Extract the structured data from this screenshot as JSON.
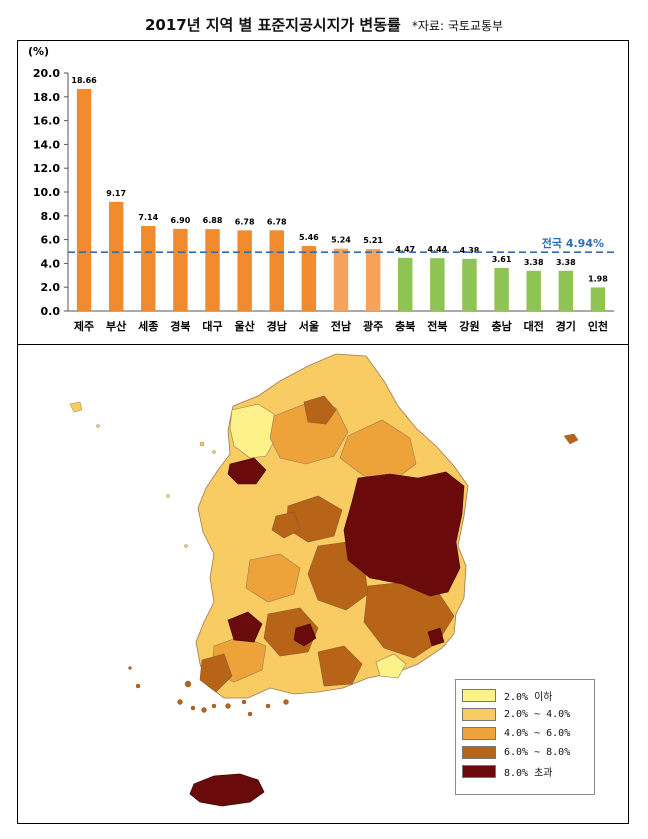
{
  "title": "2017년 지역 별 표준지공시지가 변동률",
  "source": "*자료: 국토교통부",
  "chart_data": {
    "type": "bar",
    "ylabel": "(%)",
    "ylim": [
      0,
      20
    ],
    "yticks": [
      "0.0",
      "2.0",
      "4.0",
      "6.0",
      "8.0",
      "10.0",
      "12.0",
      "14.0",
      "16.0",
      "18.0",
      "20.0"
    ],
    "categories": [
      "제주",
      "부산",
      "세종",
      "경북",
      "대구",
      "울산",
      "경남",
      "서울",
      "전남",
      "광주",
      "충북",
      "전북",
      "강원",
      "충남",
      "대전",
      "경기",
      "인천"
    ],
    "values": [
      18.66,
      9.17,
      7.14,
      6.9,
      6.88,
      6.78,
      6.78,
      5.46,
      5.24,
      5.21,
      4.47,
      4.44,
      4.38,
      3.61,
      3.38,
      3.38,
      1.98
    ],
    "labels": [
      "18.66",
      "9.17",
      "7.14",
      "6.90",
      "6.88",
      "6.78",
      "6.78",
      "5.46",
      "5.24",
      "5.21",
      "4.47",
      "4.44",
      "4.38",
      "3.61",
      "3.38",
      "3.38",
      "1.98"
    ],
    "bar_colors": [
      "#f28a2e",
      "#f28a2e",
      "#f28a2e",
      "#f28a2e",
      "#f28a2e",
      "#f28a2e",
      "#f28a2e",
      "#f28a2e",
      "#f6a25a",
      "#f6a25a",
      "#8dc454",
      "#8dc454",
      "#8dc454",
      "#8dc454",
      "#8dc454",
      "#8dc454",
      "#8dc454"
    ],
    "reference_line": {
      "label": "전국 4.94%",
      "value": 4.94,
      "color": "#2e6db4"
    },
    "grid": false
  },
  "map": {
    "legend": [
      {
        "label": "2.0% 이하",
        "color": "#fdf28a"
      },
      {
        "label": "2.0% ~ 4.0%",
        "color": "#f8cc63"
      },
      {
        "label": "4.0% ~ 6.0%",
        "color": "#eea23a"
      },
      {
        "label": "6.0% ~ 8.0%",
        "color": "#b86418"
      },
      {
        "label": "8.0% 초과",
        "color": "#6b0a0a"
      }
    ]
  }
}
